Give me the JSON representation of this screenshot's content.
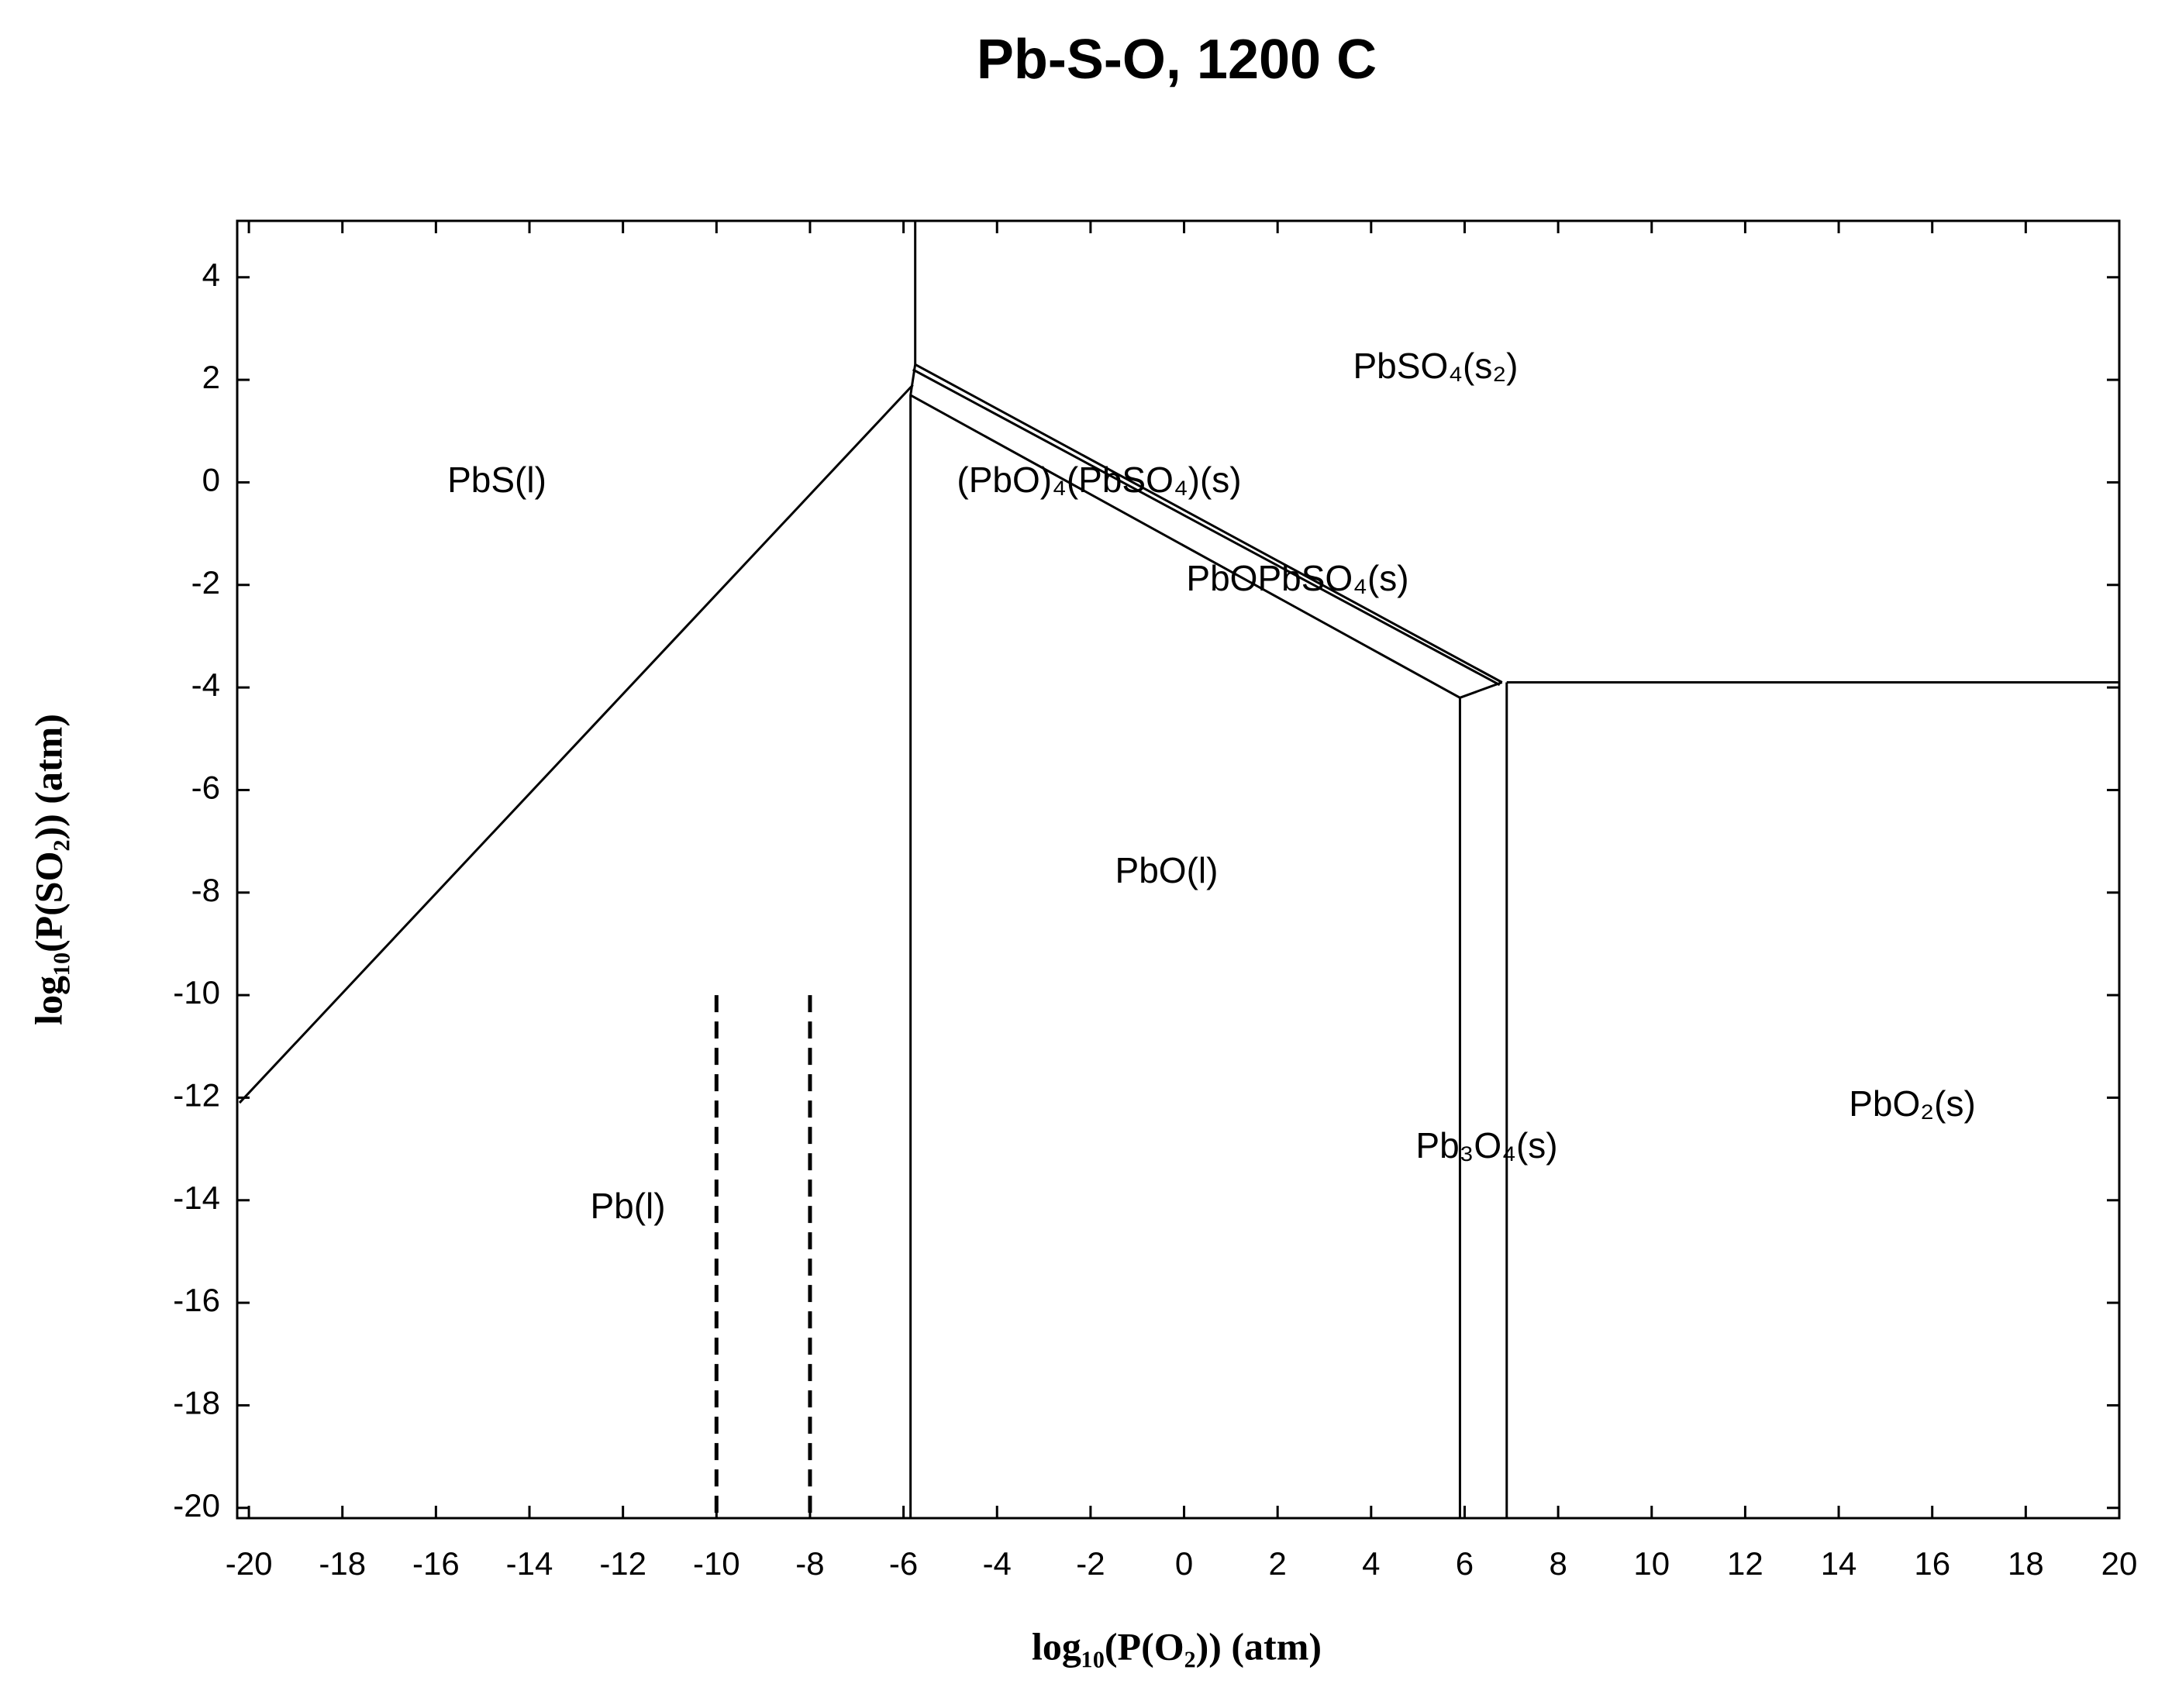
{
  "chart_data": {
    "type": "line",
    "title": "Pb-S-O, 1200 C",
    "x_label": "log₁₀(P(O₂)) (atm)",
    "y_label": "log₁₀(P(SO₂)) (atm)",
    "xlim": [
      -20.25,
      20
    ],
    "ylim": [
      -20.2,
      5.1
    ],
    "xticks": [
      -20,
      -18,
      -16,
      -14,
      -12,
      -10,
      -8,
      -6,
      -4,
      -2,
      0,
      2,
      4,
      6,
      8,
      10,
      12,
      14,
      16,
      18,
      20
    ],
    "yticks": [
      4,
      2,
      0,
      -2,
      -4,
      -6,
      -8,
      -10,
      -12,
      -14,
      -16,
      -18,
      -20
    ],
    "color": "#000000",
    "series": [
      {
        "x": [
          -20.2,
          -5.8
        ],
        "y": [
          -12.1,
          1.9
        ],
        "dashed": false
      },
      {
        "x": [
          -5.75,
          -5.75
        ],
        "y": [
          5.1,
          2.3
        ],
        "dashed": false
      },
      {
        "x": [
          -5.75,
          6.8
        ],
        "y": [
          2.3,
          -3.9
        ],
        "dashed": false
      },
      {
        "x": [
          -5.8,
          6.75
        ],
        "y": [
          2.2,
          -3.95
        ],
        "dashed": false
      },
      {
        "x": [
          -5.75,
          -5.85,
          -5.85
        ],
        "y": [
          2.3,
          1.7,
          -20.2
        ],
        "dashed": false
      },
      {
        "x": [
          -5.85,
          5.9,
          6.8
        ],
        "y": [
          1.7,
          -4.2,
          -3.9
        ],
        "dashed": false
      },
      {
        "x": [
          5.9,
          5.9
        ],
        "y": [
          -4.2,
          -20.2
        ],
        "dashed": false
      },
      {
        "x": [
          6.9,
          6.9
        ],
        "y": [
          -3.9,
          -20.2
        ],
        "dashed": false
      },
      {
        "x": [
          6.9,
          20
        ],
        "y": [
          -3.9,
          -3.9
        ],
        "dashed": false
      },
      {
        "x": [
          -10,
          -10
        ],
        "y": [
          -10,
          -20.2
        ],
        "dashed": true
      },
      {
        "x": [
          -8,
          -8
        ],
        "y": [
          -10,
          -20.2
        ],
        "dashed": true
      }
    ],
    "annotations": [
      "PbS(l)",
      "(PbO)₄(PbSO₄)(s)",
      "PbSO₄(s₂)",
      "PbOPbSO₄(s)",
      "PbO(l)",
      "Pb₃O₄(s)",
      "PbO₂(s)",
      "Pb(l)"
    ]
  }
}
